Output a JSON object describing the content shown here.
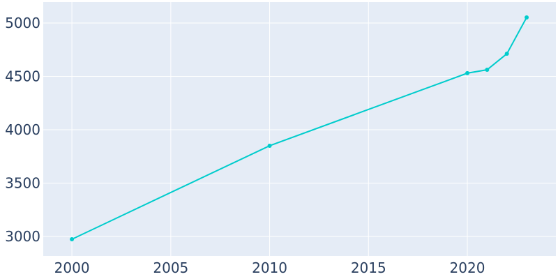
{
  "chart_data": {
    "type": "line",
    "x": [
      2000,
      2010,
      2020,
      2021,
      2022,
      2023
    ],
    "series": [
      {
        "color": "#00cccc",
        "values": [
          2974,
          3850,
          4530,
          4562,
          4712,
          5052
        ]
      }
    ],
    "xlim": [
      1998.55,
      2024.48
    ],
    "xticks": [
      2000,
      2005,
      2010,
      2015,
      2020
    ],
    "ylim": [
      2817,
      5196
    ],
    "yticks": [
      3000,
      3500,
      4000,
      4500,
      5000
    ],
    "grid": true
  }
}
